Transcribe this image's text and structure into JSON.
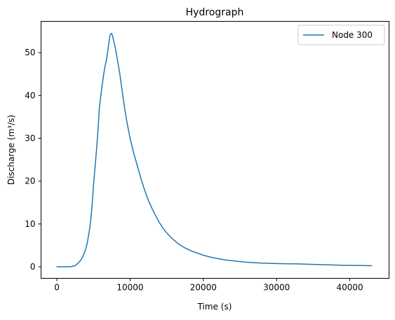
{
  "chart_data": {
    "type": "line",
    "title": "Hydrograph",
    "xlabel": "Time (s)",
    "ylabel": "Discharge (m³/s)",
    "xlim": [
      -2160,
      45360
    ],
    "ylim": [
      -2.7,
      57.3
    ],
    "xticks": [
      0,
      10000,
      20000,
      30000,
      40000
    ],
    "xtick_labels": [
      "0",
      "10000",
      "20000",
      "30000",
      "40000"
    ],
    "yticks": [
      0,
      10,
      20,
      30,
      40,
      50
    ],
    "ytick_labels": [
      "0",
      "10",
      "20",
      "30",
      "40",
      "50"
    ],
    "grid": false,
    "legend": {
      "position": "top-right",
      "entries": [
        "Node 300"
      ]
    },
    "series": [
      {
        "name": "Node 300",
        "color": "#1f77b4",
        "x": [
          0,
          500,
          1000,
          1500,
          2000,
          2200,
          2400,
          2600,
          2800,
          3000,
          3200,
          3400,
          3600,
          3800,
          4000,
          4200,
          4400,
          4600,
          4800,
          5000,
          5200,
          5400,
          5600,
          5800,
          6000,
          6200,
          6400,
          6600,
          6800,
          7000,
          7200,
          7300,
          7450,
          7600,
          7800,
          8000,
          8200,
          8400,
          8600,
          8800,
          9000,
          9300,
          9600,
          10000,
          10500,
          11000,
          11500,
          12000,
          12500,
          13000,
          13500,
          14000,
          14500,
          15000,
          15500,
          16000,
          16500,
          17000,
          17500,
          18000,
          18500,
          19000,
          19500,
          20000,
          21000,
          22000,
          23000,
          24000,
          25000,
          26000,
          27000,
          28000,
          29000,
          30000,
          31000,
          32000,
          33000,
          34000,
          35000,
          36000,
          37000,
          38000,
          39000,
          40000,
          41000,
          42000,
          43000
        ],
        "y": [
          0,
          0,
          0,
          0,
          0.05,
          0.2,
          0.15,
          0.4,
          0.7,
          1.0,
          1.4,
          1.9,
          2.6,
          3.4,
          4.5,
          6.0,
          8.0,
          10.5,
          14.0,
          19.0,
          23.0,
          27.0,
          31.5,
          37.0,
          40.0,
          42.5,
          45.0,
          47.0,
          48.5,
          51.0,
          53.5,
          54.2,
          54.5,
          54.0,
          52.5,
          51.0,
          49.0,
          47.0,
          45.0,
          42.5,
          40.0,
          36.5,
          33.5,
          30.0,
          26.5,
          23.5,
          20.5,
          17.8,
          15.5,
          13.6,
          11.9,
          10.3,
          9.0,
          7.9,
          7.0,
          6.2,
          5.5,
          4.9,
          4.4,
          4.0,
          3.6,
          3.3,
          3.0,
          2.7,
          2.25,
          1.9,
          1.6,
          1.4,
          1.2,
          1.05,
          0.95,
          0.85,
          0.8,
          0.75,
          0.72,
          0.7,
          0.68,
          0.62,
          0.55,
          0.5,
          0.45,
          0.4,
          0.35,
          0.32,
          0.3,
          0.28,
          0.25
        ]
      }
    ]
  }
}
